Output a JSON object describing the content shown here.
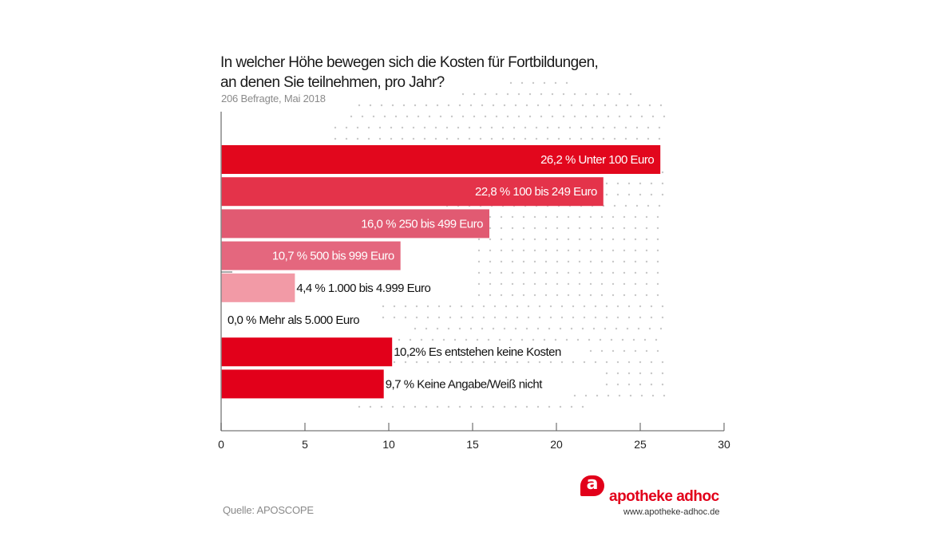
{
  "header": {
    "title_line1": "In welcher Höhe bewegen sich die Kosten für Fortbildungen,",
    "title_line2": "an denen Sie teilnehmen, pro Jahr?",
    "subtitle": "206 Befragte, Mai 2018"
  },
  "footer": {
    "source": "Quelle: APOSCOPE",
    "brand_mark": "a",
    "brand_name": "apotheke adhoc",
    "brand_url": "www.apotheke-adhoc.de"
  },
  "colors": {
    "brand": "#e2001a",
    "axis": "#888888",
    "dots": "#c8c8c8"
  },
  "chart_data": {
    "type": "bar",
    "orientation": "horizontal",
    "title": "In welcher Höhe bewegen sich die Kosten für Fortbildungen, an denen Sie teilnehmen, pro Jahr?",
    "subtitle": "206 Befragte, Mai 2018",
    "xlabel": "",
    "ylabel": "",
    "xlim": [
      0,
      30
    ],
    "xticks": [
      0,
      5,
      10,
      15,
      20,
      25,
      30
    ],
    "grid": false,
    "categories": [
      "Unter 100 Euro",
      "100 bis 249 Euro",
      "250 bis 499 Euro",
      "500 bis 999 Euro",
      "1.000 bis 4.999 Euro",
      "Mehr als 5.000 Euro",
      "Es entstehen keine Kosten",
      "Keine Angabe/Weiß nicht"
    ],
    "values": [
      26.2,
      22.8,
      16.0,
      10.7,
      4.4,
      0.0,
      10.2,
      9.7
    ],
    "labels": [
      "26,2 % Unter 100 Euro",
      "22,8 % 100 bis 249 Euro",
      "16,0 % 250 bis 499 Euro",
      "10,7 % 500 bis 999 Euro",
      "4,4 % 1.000 bis 4.999 Euro",
      "0,0 % Mehr als 5.000 Euro",
      "10,2% Es entstehen keine Kosten",
      "9,7 % Keine Angabe/Weiß nicht"
    ],
    "bar_colors": [
      "#e2071d",
      "#e4334a",
      "#e15a72",
      "#e4677e",
      "#f29aa6",
      "#ffffff",
      "#e2001a",
      "#e2001a"
    ],
    "label_inside": [
      true,
      true,
      true,
      true,
      false,
      false,
      false,
      false
    ]
  }
}
